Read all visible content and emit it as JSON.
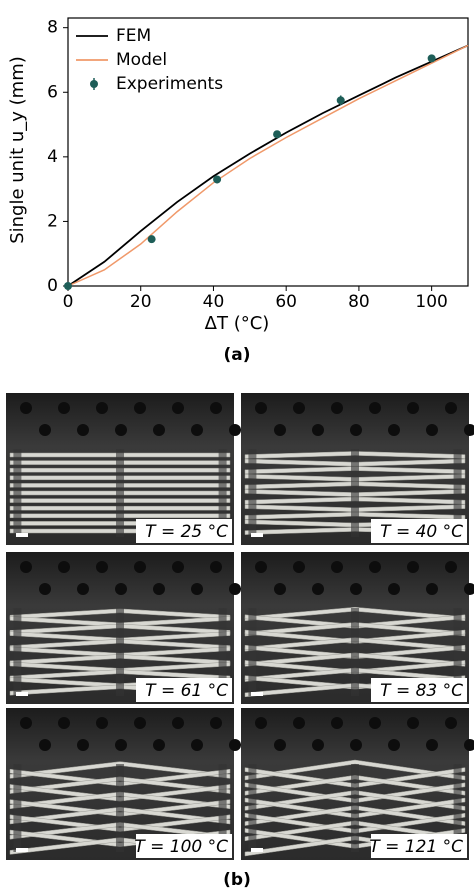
{
  "chart_data": {
    "type": "line",
    "xlabel": "ΔT (°C)",
    "ylabel": "Single unit u_y (mm)",
    "caption": "(a)",
    "xlim": [
      0,
      110
    ],
    "ylim": [
      0,
      8.3
    ],
    "xticks": [
      0,
      20,
      40,
      60,
      80,
      100
    ],
    "yticks": [
      0,
      2,
      4,
      6,
      8
    ],
    "legend": "upper left",
    "series": [
      {
        "name": "FEM",
        "color": "#000000",
        "x": [
          0,
          10,
          20,
          30,
          40,
          50,
          60,
          70,
          80,
          90,
          100,
          110
        ],
        "values": [
          0,
          0.75,
          1.7,
          2.6,
          3.4,
          4.1,
          4.75,
          5.35,
          5.9,
          6.45,
          6.95,
          7.45
        ]
      },
      {
        "name": "Model",
        "color": "#f0996a",
        "x": [
          0,
          10,
          20,
          30,
          40,
          50,
          60,
          70,
          80,
          90,
          100,
          110
        ],
        "values": [
          0,
          0.5,
          1.3,
          2.3,
          3.2,
          3.95,
          4.6,
          5.2,
          5.8,
          6.35,
          6.9,
          7.45
        ]
      },
      {
        "name": "Experiments",
        "color": "#1e5e58",
        "markers": true,
        "x": [
          0,
          23,
          41,
          57.5,
          75,
          100
        ],
        "values": [
          0,
          1.45,
          3.3,
          4.7,
          5.75,
          7.05
        ],
        "errors": [
          0.05,
          0.1,
          0.12,
          0.1,
          0.15,
          0.1
        ]
      }
    ]
  },
  "figure_b": {
    "caption": "(b)",
    "panels": [
      {
        "label": "T = 25 °C"
      },
      {
        "label": "T = 40 °C"
      },
      {
        "label": "T = 61 °C"
      },
      {
        "label": "T = 83 °C"
      },
      {
        "label": "T = 100 °C"
      },
      {
        "label": "T = 121 °C"
      }
    ]
  }
}
